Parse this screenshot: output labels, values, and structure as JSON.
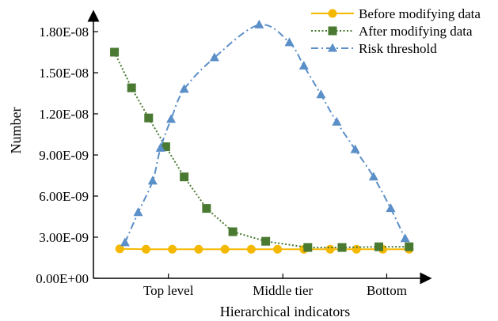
{
  "chart_data": {
    "type": "line",
    "title": "",
    "xlabel": "Hierarchical indicators",
    "ylabel": "Number",
    "ylim": [
      0,
      1.8e-08
    ],
    "yticks": [
      {
        "value": 0,
        "label": "0.00E+00"
      },
      {
        "value": 3e-09,
        "label": "3.00E-09"
      },
      {
        "value": 6e-09,
        "label": "6.00E-09"
      },
      {
        "value": 9e-09,
        "label": "9.00E-09"
      },
      {
        "value": 1.2e-08,
        "label": "1.20E-08"
      },
      {
        "value": 1.5e-08,
        "label": "1.50E-08"
      },
      {
        "value": 1.8e-08,
        "label": "1.80E-08"
      }
    ],
    "xticks": [
      {
        "value": 2.85,
        "label": "Top level"
      },
      {
        "value": 7.2,
        "label": "Middle tier"
      },
      {
        "value": 11.15,
        "label": "Bottom"
      }
    ],
    "xlim": [
      0,
      12.4
    ],
    "grid": false,
    "legend_position": "top-right",
    "series": [
      {
        "name": "Before modifying data",
        "color": "#F5B800",
        "marker": "circle",
        "dash": "solid",
        "x": [
          1,
          2,
          3,
          4,
          5,
          6,
          7,
          8,
          9,
          10,
          11,
          12
        ],
        "values": [
          2.15e-09,
          2.12e-09,
          2.12e-09,
          2.12e-09,
          2.12e-09,
          2.12e-09,
          2.12e-09,
          2.12e-09,
          2.12e-09,
          2.12e-09,
          2.12e-09,
          2.12e-09
        ]
      },
      {
        "name": "After modifying data",
        "color": "#4A7A32",
        "marker": "square",
        "dash": "dotted",
        "x": [
          0.8,
          1.45,
          2.1,
          2.75,
          3.45,
          4.3,
          5.3,
          6.55,
          8.15,
          9.45,
          10.85,
          12
        ],
        "values": [
          1.65e-08,
          1.39e-08,
          1.17e-08,
          9.6e-09,
          7.4e-09,
          5.1e-09,
          3.4e-09,
          2.7e-09,
          2.25e-09,
          2.25e-09,
          2.3e-09,
          2.3e-09
        ]
      },
      {
        "name": "Risk threshold",
        "color": "#5B8FC8",
        "marker": "triangle",
        "dash": "dashdot",
        "x": [
          1.2,
          1.7,
          2.25,
          2.55,
          2.95,
          3.45,
          4.6,
          6.3,
          7.45,
          8.0,
          8.65,
          9.25,
          9.95,
          10.65,
          11.3,
          11.85
        ],
        "values": [
          2.6e-09,
          4.8e-09,
          7.1e-09,
          9.5e-09,
          1.16e-08,
          1.38e-08,
          1.61e-08,
          1.85e-08,
          1.72e-08,
          1.55e-08,
          1.34e-08,
          1.14e-08,
          9.4e-09,
          7.4e-09,
          5.1e-09,
          2.9e-09
        ]
      }
    ]
  }
}
